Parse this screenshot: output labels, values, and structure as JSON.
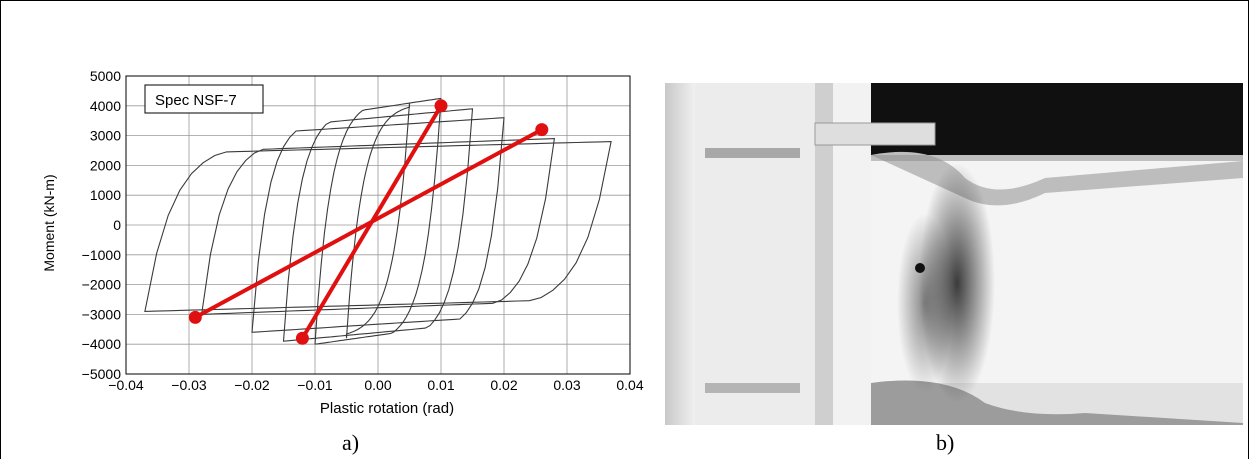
{
  "chart_data": {
    "type": "line",
    "legend_box": "Spec NSF-7",
    "xlabel": "Plastic rotation (rad)",
    "ylabel": "Moment (kN-m)",
    "xlim": [
      -0.04,
      0.04
    ],
    "ylim": [
      -5000,
      5000
    ],
    "x_ticks": [
      -0.04,
      -0.03,
      -0.02,
      -0.01,
      0.0,
      0.01,
      0.02,
      0.03,
      0.04
    ],
    "x_tick_labels": [
      "−0.04",
      "−0.03",
      "−0.02",
      "−0.01",
      "0.00",
      "0.01",
      "0.02",
      "0.03",
      "0.04"
    ],
    "y_ticks": [
      5000,
      4000,
      3000,
      2000,
      1000,
      0,
      -1000,
      -2000,
      -3000,
      -4000,
      -5000
    ],
    "y_tick_labels": [
      "5000",
      "4000",
      "3000",
      "2000",
      "1000",
      "0",
      "−1000",
      "−2000",
      "−3000",
      "−4000",
      "−5000"
    ],
    "grid": true,
    "hysteresis_loops": [
      {
        "amplitude": 0.005,
        "peak_pos": 4100,
        "peak_neg": -3800
      },
      {
        "amplitude": 0.01,
        "peak_pos": 4250,
        "peak_neg": -4000
      },
      {
        "amplitude": 0.015,
        "peak_pos": 3900,
        "peak_neg": -3900
      },
      {
        "amplitude": 0.02,
        "peak_pos": 3600,
        "peak_neg": -3600
      },
      {
        "amplitude": 0.028,
        "peak_pos": 2900,
        "peak_neg": -3000
      },
      {
        "amplitude": 0.037,
        "peak_pos": 2800,
        "peak_neg": -2900
      }
    ],
    "secant_lines": [
      {
        "x": [
          -0.012,
          0.01
        ],
        "y": [
          -3800,
          4000
        ]
      },
      {
        "x": [
          -0.029,
          0.026
        ],
        "y": [
          -3100,
          3200
        ]
      }
    ],
    "colors": {
      "curve": "#3a3a3a",
      "secant": "#e01010",
      "grid": "#9a9a9a"
    }
  },
  "captions": {
    "a": "a)",
    "b": "b)"
  }
}
